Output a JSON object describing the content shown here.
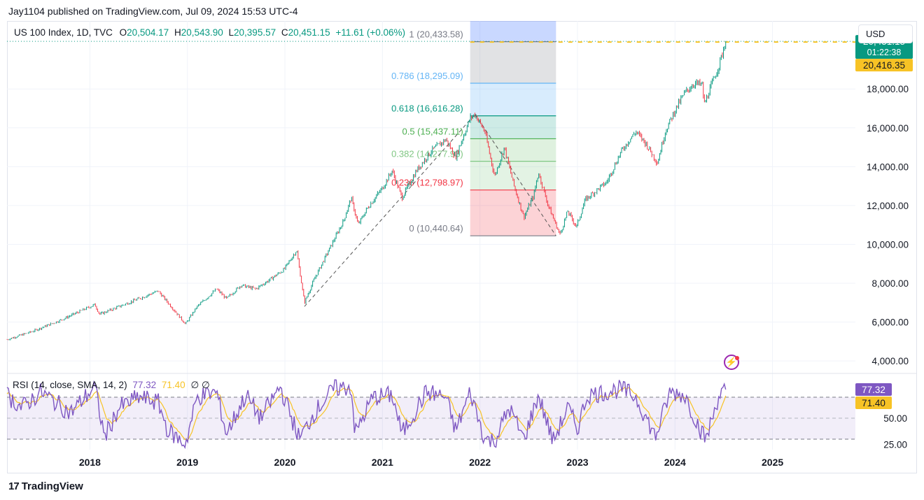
{
  "header": {
    "publisher": "Jay1104 published on TradingView.com, Jul 09, 2024 15:53 UTC-4"
  },
  "legend": {
    "symbol": "US 100 Index, 1D, TVC",
    "o_label": "O",
    "o_value": "20,504.17",
    "h_label": "H",
    "h_value": "20,543.90",
    "l_label": "L",
    "l_value": "20,395.57",
    "c_label": "C",
    "c_value": "20,451.15",
    "change": "+11.61 (+0.06%)"
  },
  "currency_button": "USD",
  "price_tags": {
    "last": "20,451.15",
    "countdown": "01:22:38",
    "second": "20,416.35",
    "last_color": "#089981",
    "second_color": "#f7c325"
  },
  "rsi_legend": {
    "title": "RSI (14, close, SMA, 14, 2)",
    "rsi": "77.32",
    "sma": "71.40",
    "extra": "∅ ∅"
  },
  "rsi_tags": {
    "rsi": "77.32",
    "sma": "71.40"
  },
  "footer": {
    "brand": "TradingView",
    "logo": "17"
  },
  "icons": {
    "bolt": "lightning-icon"
  },
  "chart_data": [
    {
      "type": "candlestick",
      "title": "US 100 Index, 1D, TVC",
      "x_ticks": [
        "2018",
        "2019",
        "2020",
        "2021",
        "2022",
        "2023",
        "2024",
        "2025"
      ],
      "y_ticks": [
        "4,000.00",
        "6,000.00",
        "8,000.00",
        "10,000.00",
        "12,000.00",
        "14,000.00",
        "16,000.00",
        "18,000.00"
      ],
      "ylim": [
        3500,
        21500
      ],
      "xlim": [
        2017.15,
        2025.85
      ],
      "grid": true,
      "price_path": [
        [
          2017.15,
          5100
        ],
        [
          2017.4,
          5500
        ],
        [
          2017.7,
          6100
        ],
        [
          2018.05,
          6900
        ],
        [
          2018.1,
          6400
        ],
        [
          2018.3,
          6800
        ],
        [
          2018.5,
          7200
        ],
        [
          2018.7,
          7600
        ],
        [
          2018.85,
          6700
        ],
        [
          2018.98,
          5900
        ],
        [
          2019.1,
          6800
        ],
        [
          2019.3,
          7700
        ],
        [
          2019.4,
          7200
        ],
        [
          2019.55,
          7900
        ],
        [
          2019.7,
          7700
        ],
        [
          2019.85,
          8200
        ],
        [
          2019.99,
          8700
        ],
        [
          2020.12,
          9700
        ],
        [
          2020.2,
          7000
        ],
        [
          2020.3,
          8200
        ],
        [
          2020.45,
          9700
        ],
        [
          2020.6,
          11200
        ],
        [
          2020.68,
          12400
        ],
        [
          2020.75,
          11000
        ],
        [
          2020.85,
          11900
        ],
        [
          2021.0,
          12900
        ],
        [
          2021.1,
          13800
        ],
        [
          2021.2,
          12400
        ],
        [
          2021.35,
          13800
        ],
        [
          2021.5,
          14800
        ],
        [
          2021.65,
          15400
        ],
        [
          2021.75,
          14500
        ],
        [
          2021.9,
          16500
        ],
        [
          2021.95,
          16700
        ],
        [
          2022.05,
          15800
        ],
        [
          2022.15,
          13500
        ],
        [
          2022.25,
          15000
        ],
        [
          2022.35,
          13000
        ],
        [
          2022.45,
          11400
        ],
        [
          2022.55,
          12500
        ],
        [
          2022.6,
          13700
        ],
        [
          2022.7,
          12000
        ],
        [
          2022.78,
          11000
        ],
        [
          2022.82,
          10500
        ],
        [
          2022.9,
          11700
        ],
        [
          2022.99,
          10900
        ],
        [
          2023.08,
          12300
        ],
        [
          2023.2,
          12800
        ],
        [
          2023.3,
          13200
        ],
        [
          2023.45,
          14800
        ],
        [
          2023.55,
          15500
        ],
        [
          2023.6,
          15800
        ],
        [
          2023.7,
          15200
        ],
        [
          2023.82,
          14200
        ],
        [
          2023.9,
          15800
        ],
        [
          2024.0,
          16900
        ],
        [
          2024.1,
          17800
        ],
        [
          2024.2,
          18300
        ],
        [
          2024.28,
          18200
        ],
        [
          2024.3,
          17200
        ],
        [
          2024.36,
          18000
        ],
        [
          2024.45,
          19200
        ],
        [
          2024.52,
          20451
        ]
      ],
      "last_value": 20451.15,
      "second_value": 20416.35,
      "fibonacci": {
        "x_range": [
          2021.9,
          2022.78
        ],
        "levels": [
          {
            "ratio": "1",
            "price": 20433.58,
            "label": "1 (20,433.58)",
            "color": "#787b86",
            "fill": "rgba(120,123,134,0.22)"
          },
          {
            "ratio": "0.786",
            "price": 18295.09,
            "label": "0.786 (18,295.09)",
            "color": "#64b5f6",
            "fill": "rgba(100,181,246,0.25)"
          },
          {
            "ratio": "0.618",
            "price": 16616.28,
            "label": "0.618 (16,616.28)",
            "color": "#089981",
            "fill": "rgba(8,153,129,0.2)"
          },
          {
            "ratio": "0.5",
            "price": 15437.11,
            "label": "0.5 (15,437.11)",
            "color": "#4caf50",
            "fill": "rgba(76,175,80,0.18)"
          },
          {
            "ratio": "0.382",
            "price": 14277.93,
            "label": "0.382 (14,277.93)",
            "color": "#81c784",
            "fill": "rgba(129,199,132,0.22)"
          },
          {
            "ratio": "0.236",
            "price": 12798.97,
            "label": "0.236 (12,798.97)",
            "color": "#f23645",
            "fill": "rgba(242,54,69,0.22)"
          },
          {
            "ratio": "0",
            "price": 10440.64,
            "label": "0 (10,440.64)",
            "color": "#787b86"
          }
        ],
        "top_fill_color": "rgba(41,98,255,0.25)"
      },
      "trend_lines": [
        [
          [
            2020.2,
            6800
          ],
          [
            2021.95,
            16700
          ]
        ],
        [
          [
            2021.95,
            16700
          ],
          [
            2022.78,
            10440
          ]
        ]
      ],
      "horizontal_dotted": [
        {
          "value": 20451,
          "color": "#089981"
        },
        {
          "value": 20416,
          "color": "#f7c325"
        }
      ],
      "colors": {
        "up": "#089981",
        "down": "#f23645"
      }
    },
    {
      "type": "line",
      "title": "RSI (14, close, SMA, 14, 2)",
      "y_ticks": [
        "25.00",
        "50.00"
      ],
      "ylim": [
        20,
        90
      ],
      "bands": {
        "upper": 70,
        "middle": 50,
        "lower": 30
      },
      "rsi_samples": [
        [
          2017.15,
          72
        ],
        [
          2017.3,
          60
        ],
        [
          2017.5,
          75
        ],
        [
          2017.8,
          55
        ],
        [
          2018.05,
          80
        ],
        [
          2018.15,
          32
        ],
        [
          2018.3,
          60
        ],
        [
          2018.5,
          70
        ],
        [
          2018.7,
          65
        ],
        [
          2018.8,
          38
        ],
        [
          2018.98,
          25
        ],
        [
          2019.1,
          70
        ],
        [
          2019.3,
          75
        ],
        [
          2019.4,
          35
        ],
        [
          2019.6,
          72
        ],
        [
          2019.75,
          50
        ],
        [
          2019.95,
          80
        ],
        [
          2020.15,
          30
        ],
        [
          2020.3,
          55
        ],
        [
          2020.5,
          78
        ],
        [
          2020.68,
          80
        ],
        [
          2020.72,
          35
        ],
        [
          2020.9,
          70
        ],
        [
          2021.1,
          72
        ],
        [
          2021.2,
          35
        ],
        [
          2021.45,
          75
        ],
        [
          2021.65,
          70
        ],
        [
          2021.75,
          38
        ],
        [
          2021.9,
          75
        ],
        [
          2022.05,
          30
        ],
        [
          2022.15,
          28
        ],
        [
          2022.3,
          60
        ],
        [
          2022.45,
          30
        ],
        [
          2022.6,
          72
        ],
        [
          2022.75,
          28
        ],
        [
          2022.9,
          60
        ],
        [
          2023.0,
          40
        ],
        [
          2023.1,
          72
        ],
        [
          2023.3,
          75
        ],
        [
          2023.45,
          78
        ],
        [
          2023.6,
          70
        ],
        [
          2023.8,
          32
        ],
        [
          2023.95,
          75
        ],
        [
          2024.1,
          72
        ],
        [
          2024.28,
          35
        ],
        [
          2024.32,
          30
        ],
        [
          2024.45,
          72
        ],
        [
          2024.52,
          77.32
        ]
      ],
      "last_rsi": 77.32,
      "last_sma": 71.4,
      "colors": {
        "rsi": "#7e57c2",
        "sma": "#f7c325",
        "band_fill": "rgba(126,87,194,0.1)"
      }
    }
  ]
}
